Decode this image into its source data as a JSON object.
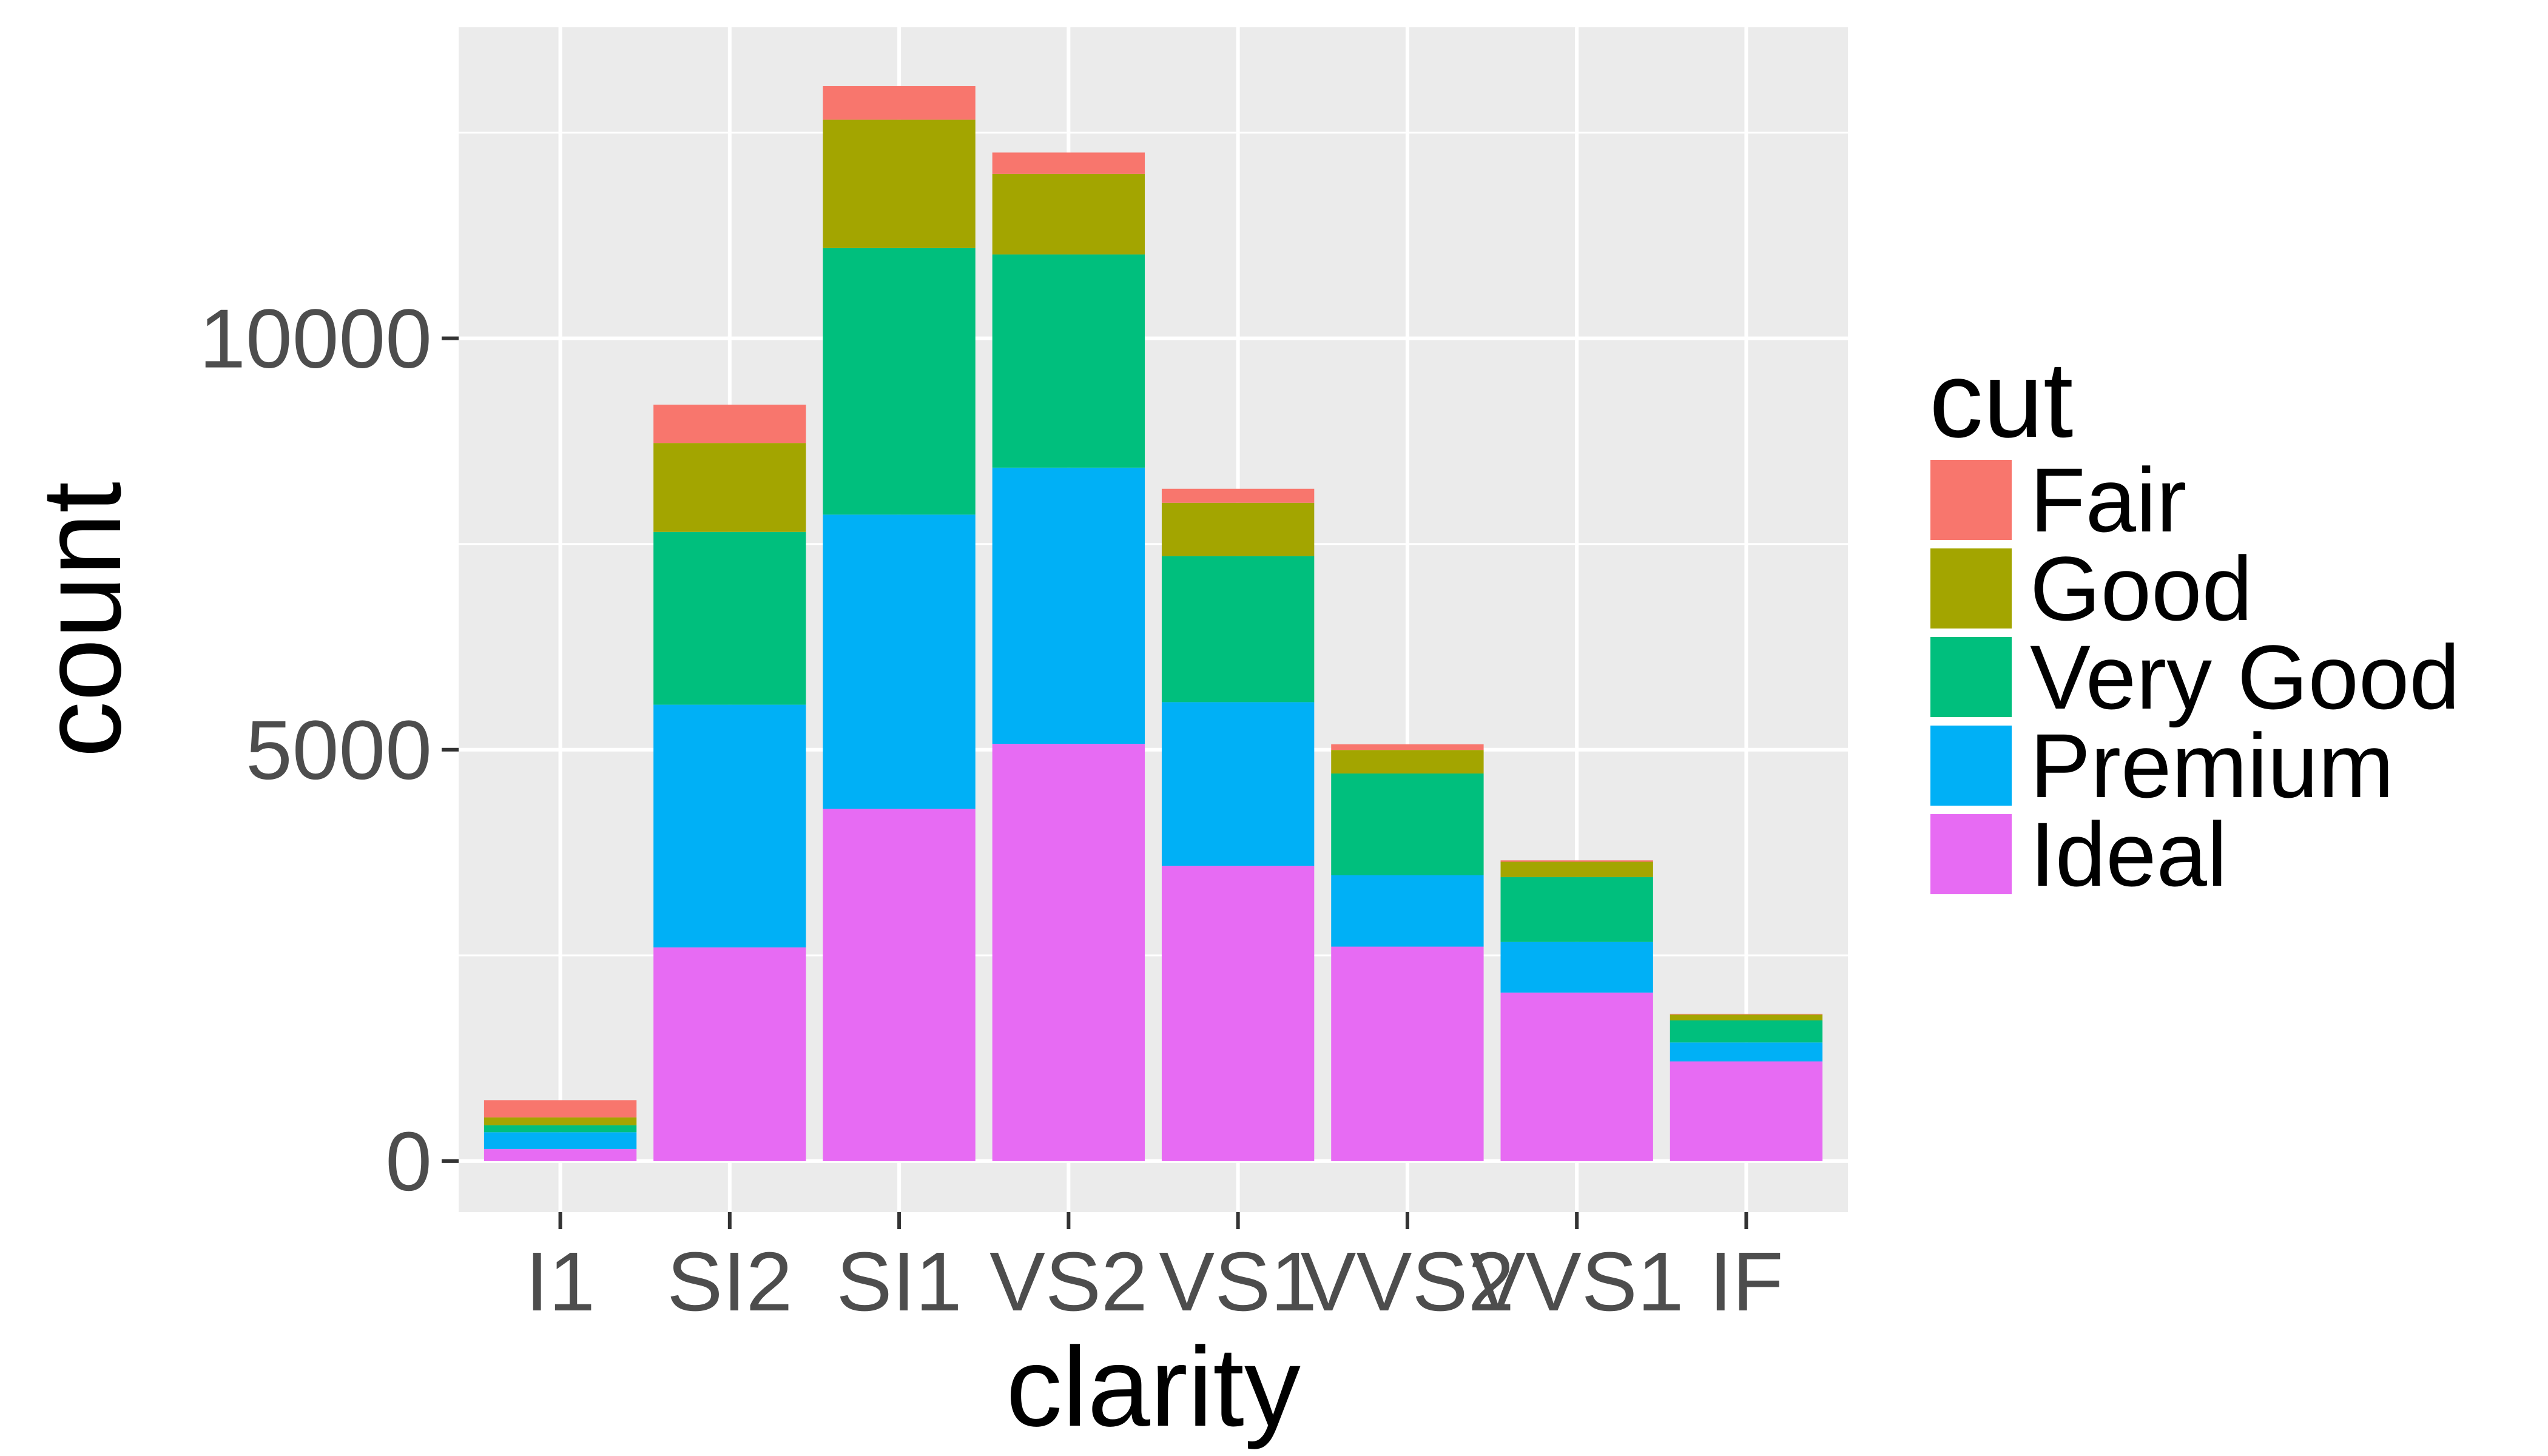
{
  "chart_data": {
    "type": "bar",
    "stacked": true,
    "title": "",
    "xlabel": "clarity",
    "ylabel": "count",
    "ylim": [
      -620,
      13780
    ],
    "yticks": [
      0,
      5000,
      10000
    ],
    "ytick_labels": [
      "0",
      "5000",
      "10000"
    ],
    "grid": true,
    "legend": {
      "title": "cut",
      "placement": "right"
    },
    "categories": [
      "I1",
      "SI2",
      "SI1",
      "VS2",
      "VS1",
      "VVS2",
      "VVS1",
      "IF"
    ],
    "series": [
      {
        "name": "Ideal",
        "color": "#E76BF3",
        "values": [
          146,
          2598,
          4282,
          5071,
          3589,
          2606,
          2047,
          1212
        ]
      },
      {
        "name": "Premium",
        "color": "#00B0F6",
        "values": [
          205,
          2949,
          3575,
          3357,
          1989,
          870,
          616,
          230
        ]
      },
      {
        "name": "Very Good",
        "color": "#00BF7D",
        "values": [
          84,
          2100,
          3240,
          2591,
          1775,
          1235,
          789,
          268
        ]
      },
      {
        "name": "Good",
        "color": "#A3A500",
        "values": [
          96,
          1081,
          1560,
          978,
          648,
          286,
          186,
          71
        ]
      },
      {
        "name": "Fair",
        "color": "#F8766D",
        "values": [
          210,
          466,
          408,
          261,
          170,
          69,
          17,
          9
        ]
      }
    ],
    "legend_order": [
      "Fair",
      "Good",
      "Very Good",
      "Premium",
      "Ideal"
    ]
  }
}
